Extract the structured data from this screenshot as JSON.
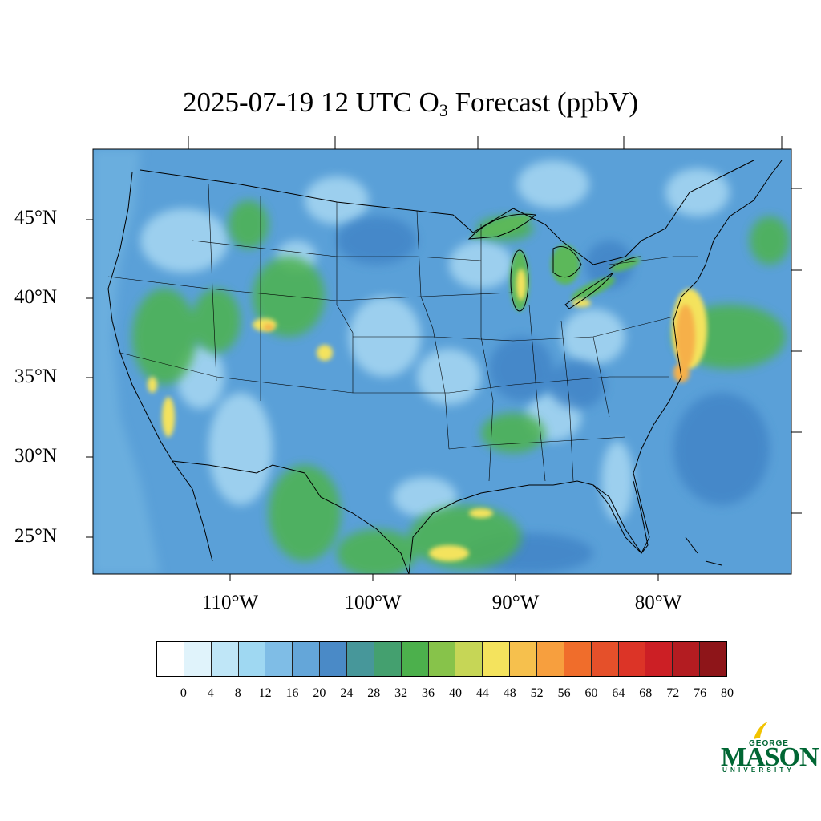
{
  "title": {
    "prefix": "2025-07-19 12 UTC O",
    "subscript": "3",
    "suffix": " Forecast (ppbV)"
  },
  "map": {
    "region": "Contiguous United States",
    "projection": "Lambert conformal",
    "lat_labels": [
      "45°N",
      "40°N",
      "35°N",
      "30°N",
      "25°N"
    ],
    "lon_labels": [
      "110°W",
      "100°W",
      "90°W",
      "80°W"
    ],
    "background_color": "#5aa0d8",
    "boundaries_color": "#000000"
  },
  "colorbar": {
    "levels": [
      "0",
      "4",
      "8",
      "12",
      "16",
      "20",
      "24",
      "28",
      "32",
      "36",
      "40",
      "44",
      "48",
      "52",
      "56",
      "60",
      "64",
      "68",
      "72",
      "76",
      "80"
    ],
    "colors": [
      "#ffffff",
      "#e0f3fb",
      "#bfe6f7",
      "#9fd8f2",
      "#7fbde6",
      "#64a6d9",
      "#4a8ac7",
      "#47979a",
      "#44a06f",
      "#4cb04c",
      "#87c34a",
      "#c6d656",
      "#f4e35d",
      "#f6c04d",
      "#f79f3e",
      "#f06d2b",
      "#e5502a",
      "#dc3427",
      "#cc1f25",
      "#b31c21",
      "#8e1519"
    ]
  },
  "logo": {
    "top": "GEORGE",
    "main": "MASON",
    "bottom": "UNIVERSITY",
    "color": "#006633",
    "accent": "#f2c300"
  }
}
